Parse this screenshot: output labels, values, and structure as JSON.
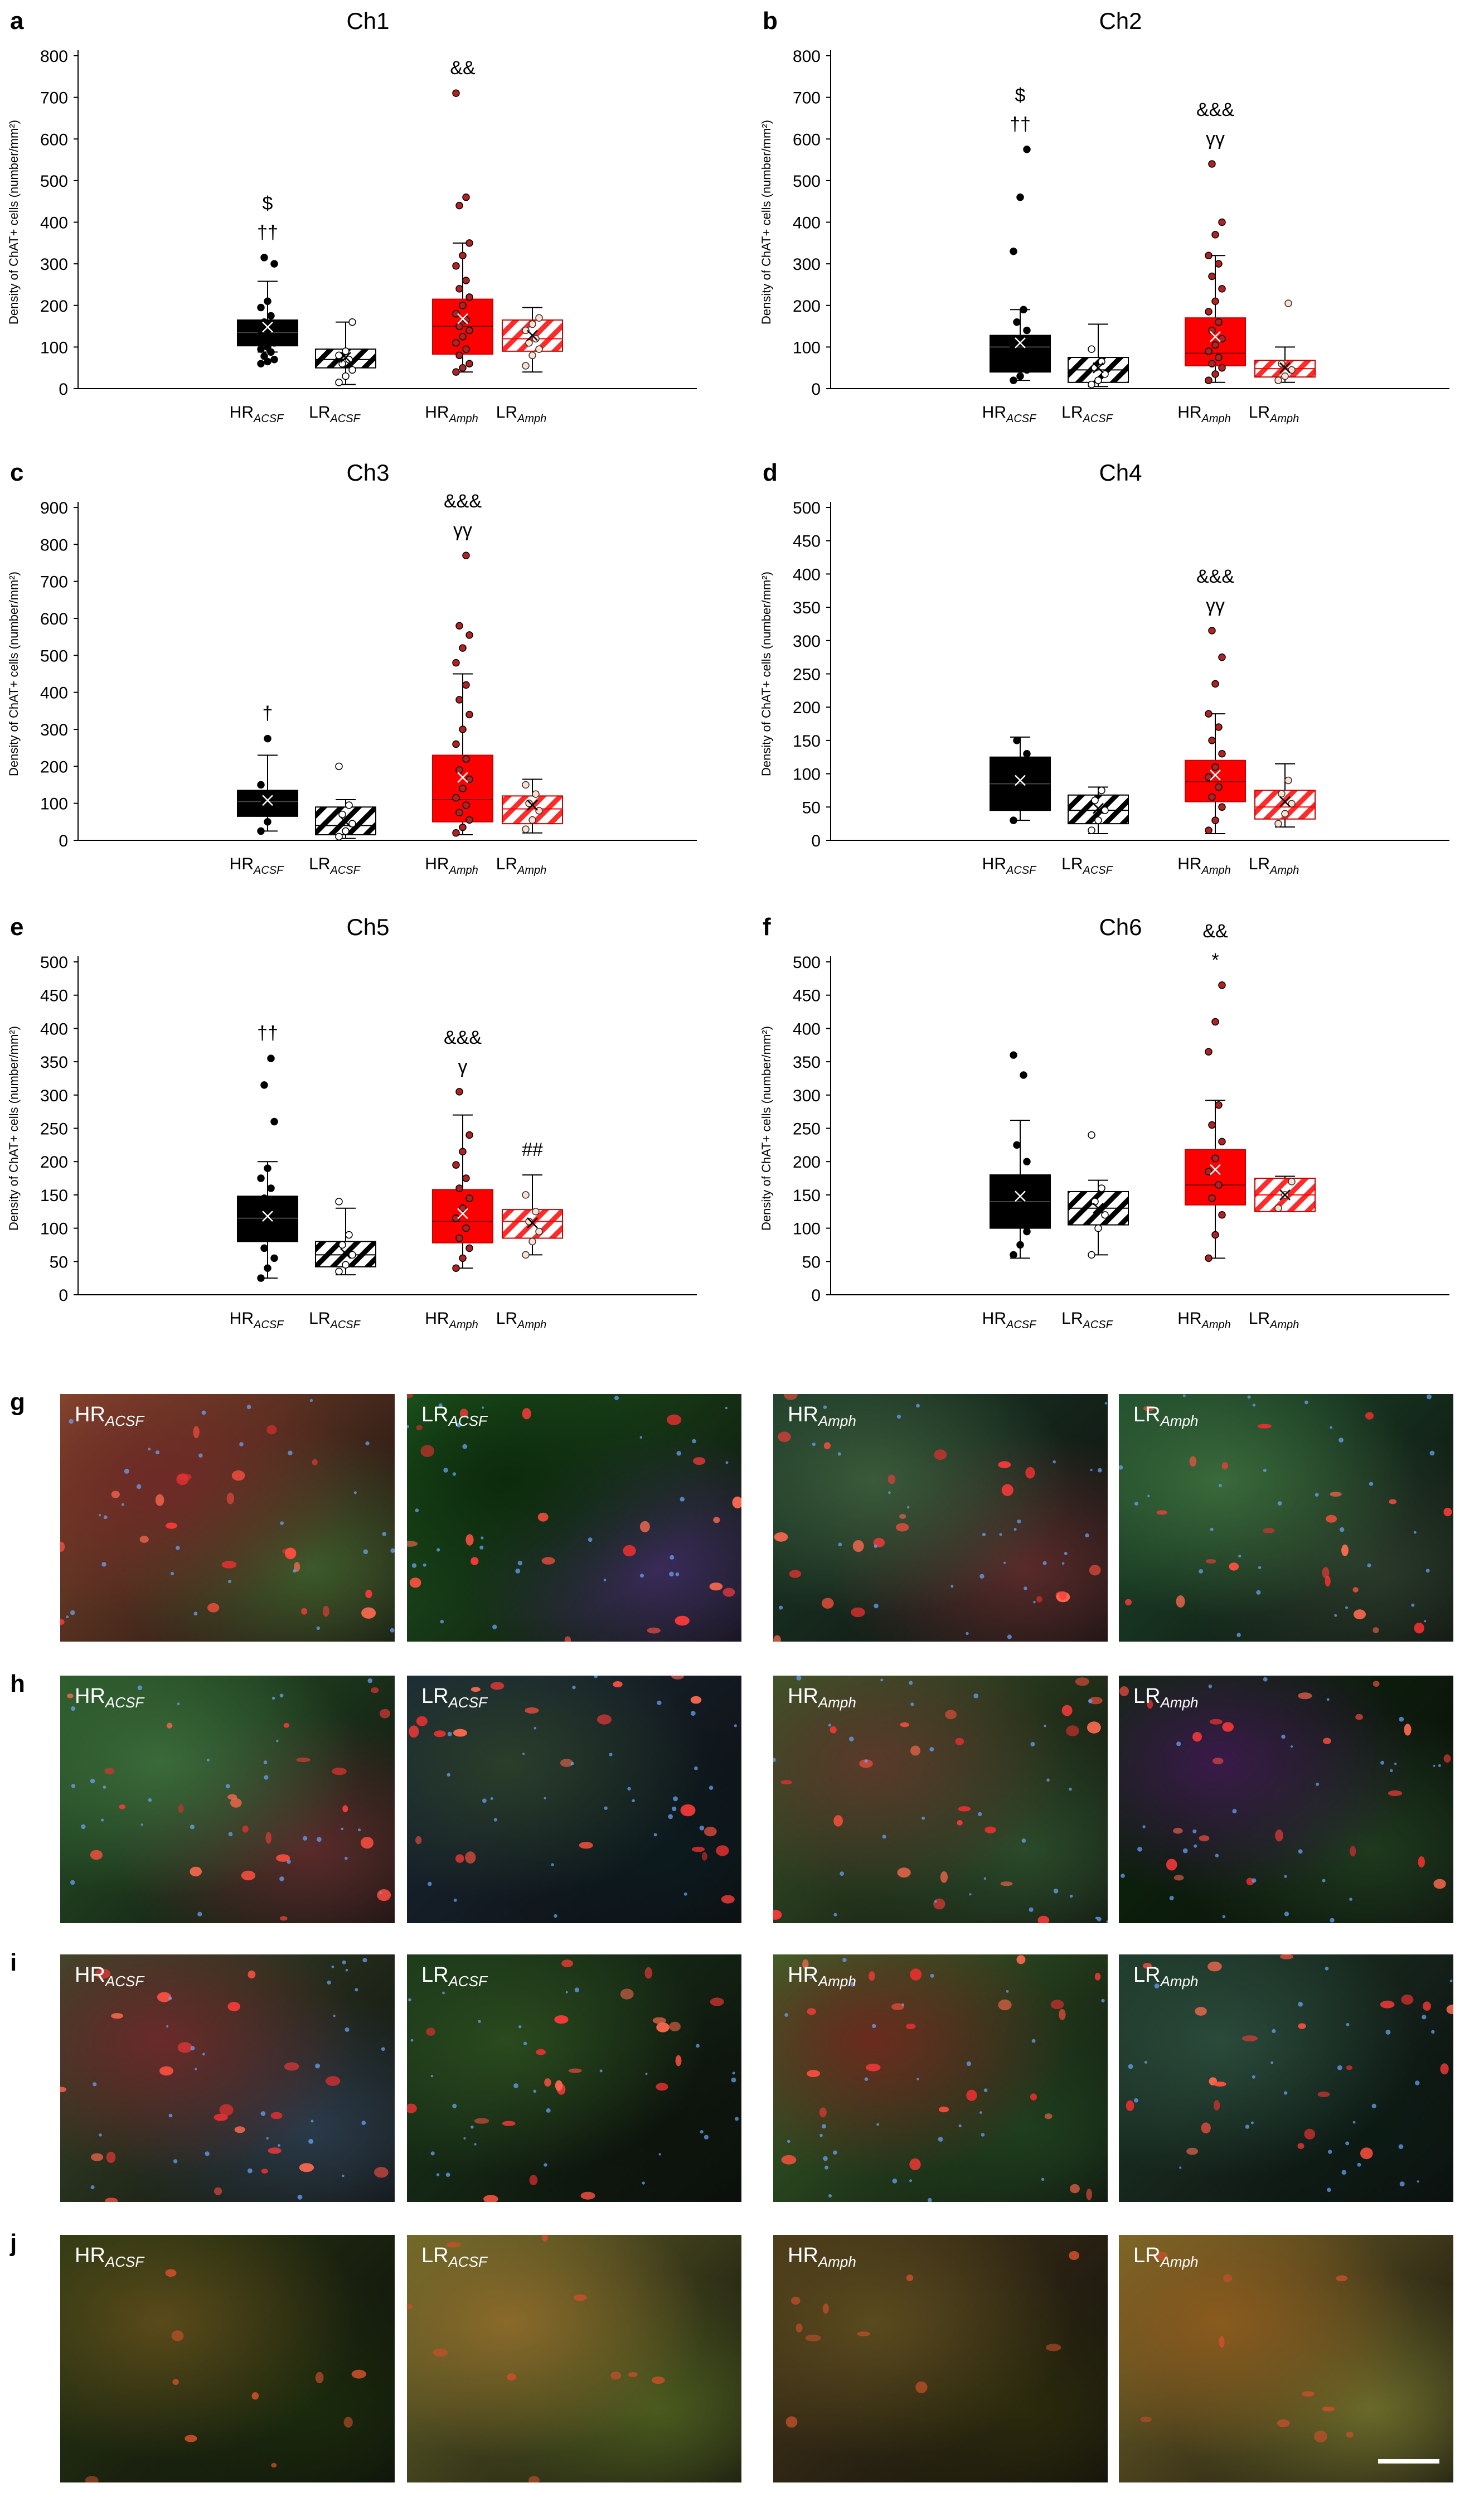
{
  "chart_data": [
    {
      "panel": "a",
      "type": "boxplot",
      "title": "Ch1",
      "ylabel": "Density of ChAT+ cells (number/mm²)",
      "ylim": [
        0,
        800
      ],
      "ytick_step": 100,
      "groups": [
        {
          "main": "HR",
          "sub": "ACSF",
          "style": "solid-black",
          "q1": 103,
          "median": 135,
          "q3": 165,
          "mean": 148,
          "whisker_low": 88,
          "whisker_high": 258,
          "points": [
            60,
            65,
            70,
            78,
            88,
            95,
            100,
            110,
            118,
            125,
            130,
            140,
            150,
            160,
            175,
            195,
            210,
            300,
            315
          ],
          "marks": [
            "$",
            "††"
          ]
        },
        {
          "main": "LR",
          "sub": "ACSF",
          "style": "hatch-black",
          "q1": 50,
          "median": 70,
          "q3": 95,
          "mean": 75,
          "whisker_low": 10,
          "whisker_high": 160,
          "points": [
            15,
            30,
            45,
            60,
            70,
            80,
            90,
            160
          ],
          "marks": []
        },
        {
          "main": "HR",
          "sub": "Amph",
          "style": "solid-red",
          "q1": 83,
          "median": 150,
          "q3": 215,
          "mean": 168,
          "whisker_low": 40,
          "whisker_high": 350,
          "points": [
            40,
            50,
            60,
            80,
            95,
            110,
            125,
            140,
            150,
            165,
            180,
            200,
            220,
            240,
            260,
            295,
            320,
            350,
            440,
            460,
            710
          ],
          "marks": [
            "&&"
          ]
        },
        {
          "main": "LR",
          "sub": "Amph",
          "style": "hatch-red",
          "q1": 90,
          "median": 120,
          "q3": 165,
          "mean": 128,
          "whisker_low": 40,
          "whisker_high": 195,
          "points": [
            55,
            80,
            95,
            110,
            120,
            140,
            155,
            170
          ],
          "marks": []
        }
      ]
    },
    {
      "panel": "b",
      "type": "boxplot",
      "title": "Ch2",
      "ylabel": "Density of ChAT+ cells (number/mm²)",
      "ylim": [
        0,
        800
      ],
      "ytick_step": 100,
      "groups": [
        {
          "main": "HR",
          "sub": "ACSF",
          "style": "solid-black",
          "q1": 40,
          "median": 100,
          "q3": 128,
          "mean": 110,
          "whisker_low": 20,
          "whisker_high": 190,
          "points": [
            20,
            30,
            45,
            60,
            80,
            100,
            120,
            140,
            160,
            190,
            330,
            460,
            575
          ],
          "marks": [
            "$",
            "††"
          ]
        },
        {
          "main": "LR",
          "sub": "ACSF",
          "style": "hatch-black",
          "q1": 15,
          "median": 45,
          "q3": 75,
          "mean": 50,
          "whisker_low": 5,
          "whisker_high": 155,
          "points": [
            10,
            20,
            35,
            50,
            65,
            95
          ],
          "marks": []
        },
        {
          "main": "HR",
          "sub": "Amph",
          "style": "solid-red",
          "q1": 55,
          "median": 85,
          "q3": 170,
          "mean": 125,
          "whisker_low": 15,
          "whisker_high": 320,
          "points": [
            20,
            35,
            50,
            60,
            75,
            90,
            105,
            120,
            140,
            160,
            185,
            210,
            240,
            270,
            300,
            320,
            370,
            400,
            540
          ],
          "marks": [
            "&&&",
            "γγ"
          ]
        },
        {
          "main": "LR",
          "sub": "Amph",
          "style": "hatch-red",
          "q1": 28,
          "median": 48,
          "q3": 68,
          "mean": 50,
          "whisker_low": 15,
          "whisker_high": 100,
          "points": [
            20,
            30,
            45,
            60,
            205
          ],
          "marks": []
        }
      ]
    },
    {
      "panel": "c",
      "type": "boxplot",
      "title": "Ch3",
      "ylabel": "Density of ChAT+ cells (number/mm²)",
      "ylim": [
        0,
        900
      ],
      "ytick_step": 100,
      "groups": [
        {
          "main": "HR",
          "sub": "ACSF",
          "style": "solid-black",
          "q1": 65,
          "median": 105,
          "q3": 135,
          "mean": 108,
          "whisker_low": 25,
          "whisker_high": 230,
          "points": [
            25,
            50,
            75,
            100,
            120,
            150,
            275
          ],
          "marks": [
            "†"
          ]
        },
        {
          "main": "LR",
          "sub": "ACSF",
          "style": "hatch-black",
          "q1": 15,
          "median": 40,
          "q3": 90,
          "mean": 50,
          "whisker_low": 5,
          "whisker_high": 110,
          "points": [
            10,
            25,
            45,
            70,
            95,
            200
          ],
          "marks": []
        },
        {
          "main": "HR",
          "sub": "Amph",
          "style": "solid-red",
          "q1": 50,
          "median": 110,
          "q3": 230,
          "mean": 170,
          "whisker_low": 15,
          "whisker_high": 450,
          "points": [
            20,
            35,
            55,
            75,
            95,
            115,
            140,
            165,
            190,
            220,
            260,
            300,
            340,
            380,
            420,
            480,
            520,
            555,
            580,
            770
          ],
          "marks": [
            "&&&",
            "γγ"
          ]
        },
        {
          "main": "LR",
          "sub": "Amph",
          "style": "hatch-red",
          "q1": 45,
          "median": 85,
          "q3": 120,
          "mean": 95,
          "whisker_low": 20,
          "whisker_high": 165,
          "points": [
            30,
            55,
            80,
            100,
            125,
            150
          ],
          "marks": []
        }
      ]
    },
    {
      "panel": "d",
      "type": "boxplot",
      "title": "Ch4",
      "ylabel": "Density of ChAT+ cells (number/mm²)",
      "ylim": [
        0,
        500
      ],
      "ytick_step": 50,
      "groups": [
        {
          "main": "HR",
          "sub": "ACSF",
          "style": "solid-black",
          "q1": 45,
          "median": 85,
          "q3": 125,
          "mean": 90,
          "whisker_low": 30,
          "whisker_high": 155,
          "points": [
            30,
            70,
            130,
            150
          ],
          "marks": []
        },
        {
          "main": "LR",
          "sub": "ACSF",
          "style": "hatch-black",
          "q1": 25,
          "median": 45,
          "q3": 68,
          "mean": 48,
          "whisker_low": 10,
          "whisker_high": 80,
          "points": [
            15,
            30,
            45,
            60,
            75
          ],
          "marks": []
        },
        {
          "main": "HR",
          "sub": "Amph",
          "style": "solid-red",
          "q1": 58,
          "median": 88,
          "q3": 120,
          "mean": 98,
          "whisker_low": 10,
          "whisker_high": 190,
          "points": [
            15,
            30,
            50,
            65,
            80,
            95,
            110,
            130,
            150,
            170,
            190,
            235,
            275,
            315
          ],
          "marks": [
            "&&&",
            "γγ"
          ]
        },
        {
          "main": "LR",
          "sub": "Amph",
          "style": "hatch-red",
          "q1": 32,
          "median": 50,
          "q3": 75,
          "mean": 58,
          "whisker_low": 20,
          "whisker_high": 115,
          "points": [
            25,
            40,
            55,
            70,
            90
          ],
          "marks": []
        }
      ]
    },
    {
      "panel": "e",
      "type": "boxplot",
      "title": "Ch5",
      "ylabel": "Density of ChAT+ cells (number/mm²)",
      "ylim": [
        0,
        500
      ],
      "ytick_step": 50,
      "groups": [
        {
          "main": "HR",
          "sub": "ACSF",
          "style": "solid-black",
          "q1": 80,
          "median": 115,
          "q3": 148,
          "mean": 118,
          "whisker_low": 25,
          "whisker_high": 200,
          "points": [
            25,
            40,
            55,
            70,
            85,
            100,
            115,
            130,
            145,
            160,
            175,
            190,
            260,
            315,
            355
          ],
          "marks": [
            "††"
          ]
        },
        {
          "main": "LR",
          "sub": "ACSF",
          "style": "hatch-black",
          "q1": 42,
          "median": 60,
          "q3": 80,
          "mean": 62,
          "whisker_low": 30,
          "whisker_high": 130,
          "points": [
            35,
            45,
            60,
            75,
            90,
            140
          ],
          "marks": []
        },
        {
          "main": "HR",
          "sub": "Amph",
          "style": "solid-red",
          "q1": 78,
          "median": 110,
          "q3": 158,
          "mean": 122,
          "whisker_low": 40,
          "whisker_high": 270,
          "points": [
            40,
            55,
            70,
            85,
            100,
            115,
            130,
            145,
            160,
            175,
            195,
            215,
            240,
            305
          ],
          "marks": [
            "&&&",
            "γ"
          ]
        },
        {
          "main": "LR",
          "sub": "Amph",
          "style": "hatch-red",
          "q1": 85,
          "median": 110,
          "q3": 128,
          "mean": 108,
          "whisker_low": 60,
          "whisker_high": 180,
          "points": [
            60,
            80,
            95,
            110,
            125,
            150
          ],
          "marks": [
            "##"
          ]
        }
      ]
    },
    {
      "panel": "f",
      "type": "boxplot",
      "title": "Ch6",
      "ylabel": "Density of ChAT+ cells (number/mm²)",
      "ylim": [
        0,
        500
      ],
      "ytick_step": 50,
      "groups": [
        {
          "main": "HR",
          "sub": "ACSF",
          "style": "solid-black",
          "q1": 100,
          "median": 140,
          "q3": 180,
          "mean": 148,
          "whisker_low": 55,
          "whisker_high": 262,
          "points": [
            60,
            75,
            95,
            115,
            135,
            155,
            175,
            200,
            225,
            330,
            360
          ],
          "marks": []
        },
        {
          "main": "LR",
          "sub": "ACSF",
          "style": "hatch-black",
          "q1": 105,
          "median": 130,
          "q3": 155,
          "mean": 130,
          "whisker_low": 60,
          "whisker_high": 172,
          "points": [
            60,
            100,
            120,
            140,
            160,
            240
          ],
          "marks": []
        },
        {
          "main": "HR",
          "sub": "Amph",
          "style": "solid-red",
          "q1": 135,
          "median": 165,
          "q3": 218,
          "mean": 188,
          "whisker_low": 55,
          "whisker_high": 292,
          "points": [
            55,
            90,
            120,
            145,
            165,
            185,
            205,
            230,
            255,
            285,
            365,
            410,
            465
          ],
          "marks": [
            "&&",
            "*"
          ]
        },
        {
          "main": "LR",
          "sub": "Amph",
          "style": "hatch-red",
          "q1": 125,
          "median": 150,
          "q3": 175,
          "mean": 150,
          "whisker_low": 125,
          "whisker_high": 178,
          "points": [
            130,
            150,
            170
          ],
          "marks": []
        }
      ]
    }
  ],
  "micrographs": {
    "rows": [
      {
        "letter": "g",
        "tiles": [
          {
            "main": "HR",
            "sub": "ACSF",
            "colors": [
              "#8a4a2e",
              "#6e2a26",
              "#3c5a2a"
            ]
          },
          {
            "main": "LR",
            "sub": "ACSF",
            "colors": [
              "#1e5a1e",
              "#0c2a0c",
              "#3a2a5a"
            ]
          },
          {
            "main": "HR",
            "sub": "Amph",
            "colors": [
              "#1e3e2a",
              "#3a5a3a",
              "#5a2a2a"
            ]
          },
          {
            "main": "LR",
            "sub": "Amph",
            "colors": [
              "#1e4e2e",
              "#3a6a3a",
              "#2a3a2a"
            ]
          }
        ]
      },
      {
        "letter": "h",
        "tiles": [
          {
            "main": "HR",
            "sub": "ACSF",
            "colors": [
              "#2a5a2a",
              "#3a6a3a",
              "#5a2a2a"
            ]
          },
          {
            "main": "LR",
            "sub": "ACSF",
            "colors": [
              "#1a2a3a",
              "#2a3e2a",
              "#0c1a1e"
            ]
          },
          {
            "main": "HR",
            "sub": "Amph",
            "colors": [
              "#3a5a2a",
              "#5a3a2a",
              "#2a4a2a"
            ]
          },
          {
            "main": "LR",
            "sub": "Amph",
            "colors": [
              "#0c2a0c",
              "#3a1a4a",
              "#1e3a1e"
            ]
          }
        ]
      },
      {
        "letter": "i",
        "tiles": [
          {
            "main": "HR",
            "sub": "ACSF",
            "colors": [
              "#3a4a2a",
              "#6a2a2a",
              "#2a3a4a"
            ]
          },
          {
            "main": "LR",
            "sub": "ACSF",
            "colors": [
              "#1a3a1a",
              "#2a4a1e",
              "#0c140c"
            ]
          },
          {
            "main": "HR",
            "sub": "Amph",
            "colors": [
              "#3a6a2a",
              "#6a2a1e",
              "#1e3e1e"
            ]
          },
          {
            "main": "LR",
            "sub": "Amph",
            "colors": [
              "#1e3a2a",
              "#2a4a3a",
              "#0c1a14"
            ]
          }
        ]
      },
      {
        "letter": "j",
        "tiles": [
          {
            "main": "HR",
            "sub": "ACSF",
            "colors": [
              "#2a3a12",
              "#5a4a1a",
              "#1a2a0c"
            ]
          },
          {
            "main": "LR",
            "sub": "ACSF",
            "colors": [
              "#6a6a2a",
              "#8a6a2a",
              "#4a5a1e"
            ]
          },
          {
            "main": "HR",
            "sub": "Amph",
            "colors": [
              "#4a3a1a",
              "#5a4a1e",
              "#2a2a0c"
            ]
          },
          {
            "main": "LR",
            "sub": "Amph",
            "colors": [
              "#7a6a2a",
              "#8a5a1e",
              "#6a6a2a"
            ]
          }
        ]
      }
    ]
  },
  "colors": {
    "black": "#000000",
    "red": "#ff0000",
    "dot_red": "#b22222",
    "hatch_red": "#ff2a2a"
  }
}
